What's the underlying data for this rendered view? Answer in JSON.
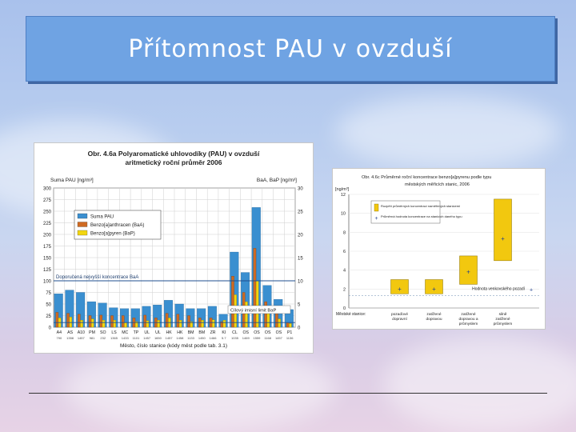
{
  "slide": {
    "title": "Přítomnost PAU v ovzduší"
  },
  "colors": {
    "suma": "#3a8fd0",
    "baa": "#cf6a22",
    "bap": "#f2d60f",
    "band": "#f2c80f"
  },
  "chart_data": [
    {
      "type": "bar",
      "title_line1": "Obr. 4.6a Polyaromatické uhlovodíky (PAU) v ovzduší",
      "title_line2": "aritmetický roční průměr 2006",
      "ylabel_left": "Suma PAU [ng/m³]",
      "ylabel_right": "BaA, BaP [ng/m³]",
      "xlabel": "Město, číslo stanice (kódy měst podle tab. 3.1)",
      "ylim_left": [
        0,
        300
      ],
      "ylim_right": [
        0,
        30
      ],
      "yticks_left": [
        "0",
        "25",
        "50",
        "75",
        "100",
        "125",
        "150",
        "175",
        "200",
        "225",
        "250",
        "275",
        "300"
      ],
      "yticks_right": [
        "0",
        "5",
        "10",
        "15",
        "20",
        "25",
        "30"
      ],
      "legend": [
        "Suma PAU",
        "Benzo[a]anthracen (BaA)",
        "Benzo[a]pyren (BaP)"
      ],
      "annotation_recommended": "Doporučená nejvyšší koncentrace BaA",
      "annotation_target": "Cílový imisní limit BaP",
      "categories": [
        "A4",
        "AS",
        "A10",
        "PM",
        "SO",
        "LS",
        "MC",
        "TP",
        "UL",
        "UL",
        "HK",
        "HK",
        "BM",
        "BM",
        "ZR",
        "KI",
        "CL",
        "OS",
        "OS",
        "OS",
        "OS",
        "P1"
      ],
      "station_codes": [
        "790",
        "1358",
        "1457",
        "981",
        "232",
        "1365",
        "1433",
        "1101",
        "1457",
        "1650",
        "1457",
        "1458",
        "1133",
        "1450",
        "1466",
        "5.7",
        "1035",
        "1469",
        "1559",
        "1168",
        "1457",
        "1136"
      ],
      "series": [
        {
          "name": "Suma PAU",
          "axis": "left",
          "values": [
            72,
            80,
            75,
            55,
            52,
            42,
            40,
            40,
            45,
            48,
            58,
            50,
            40,
            40,
            45,
            28,
            162,
            118,
            258,
            90,
            60,
            38
          ]
        },
        {
          "name": "Benzo[a]anthracen (BaA)",
          "axis": "right",
          "values": [
            3.2,
            3.0,
            2.8,
            2.5,
            2.6,
            2.5,
            2.5,
            2.0,
            2.6,
            2.0,
            3.0,
            2.8,
            2.5,
            2.0,
            2.0,
            1.2,
            11.0,
            7.5,
            17.0,
            5.5,
            3.0,
            1.0
          ]
        },
        {
          "name": "Benzo[a]pyren (BaP)",
          "axis": "right",
          "values": [
            2.0,
            2.2,
            1.5,
            1.8,
            1.5,
            1.5,
            1.0,
            1.2,
            1.4,
            1.5,
            2.0,
            1.5,
            1.2,
            1.5,
            1.6,
            1.5,
            7.0,
            5.5,
            10.0,
            4.0,
            1.8,
            0.8
          ]
        }
      ],
      "recommended_baa_level": 10,
      "target_bap_level": 1
    },
    {
      "type": "bar",
      "title_line1": "Obr. 4.6c Průměrné roční koncentrace benzo[a]pyrenu podle typu",
      "title_line2": "městských měřicích stanic, 2006",
      "ylabel": "[ng/m³]",
      "ylim": [
        0,
        12
      ],
      "yticks": [
        "0",
        "2",
        "4",
        "6",
        "8",
        "10",
        "12"
      ],
      "xlabel_prefix": "Městské stanice:",
      "categories": [
        "pozaďové dopravní",
        "zatížené dopravou",
        "zatížené dopravou a průmyslem",
        "silně zatížené průmyslem"
      ],
      "ranges": [
        [
          1.5,
          3.0
        ],
        [
          1.5,
          3.0
        ],
        [
          2.5,
          5.5
        ],
        [
          5.0,
          11.5
        ]
      ],
      "mean_points": [
        2.0,
        2.0,
        3.8,
        7.3
      ],
      "legend": [
        "Rozpětí průměrných koncentrací naměřených stanicemi",
        "Průměrná hodnota koncentrace na stanicích daného typu"
      ],
      "background_label": "Hodnota venkovského pozadí",
      "background_value": 1.3
    }
  ]
}
